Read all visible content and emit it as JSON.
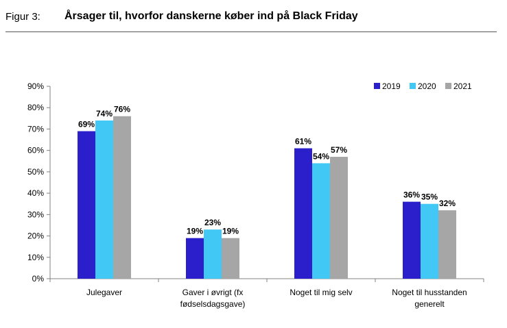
{
  "header": {
    "figure_label": "Figur 3:",
    "title": "Årsager til, hvorfor danskerne køber ind på Black Friday"
  },
  "chart_data": {
    "type": "bar",
    "title": "Årsager til, hvorfor danskerne køber ind på Black Friday",
    "categories": [
      [
        "Julegaver"
      ],
      [
        "Gaver i øvrigt (fx",
        "fødselsdagsgave)"
      ],
      [
        "Noget til mig selv"
      ],
      [
        "Noget til husstanden",
        "generelt"
      ]
    ],
    "series": [
      {
        "name": "2019",
        "color": "#2b1fcc",
        "values": [
          69,
          19,
          61,
          36
        ],
        "labels": [
          "69%",
          "19%",
          "61%",
          "36%"
        ]
      },
      {
        "name": "2020",
        "color": "#42c8f4",
        "values": [
          74,
          23,
          54,
          35
        ],
        "labels": [
          "74%",
          "23%",
          "54%",
          "35%"
        ]
      },
      {
        "name": "2021",
        "color": "#a6a6a6",
        "values": [
          76,
          19,
          57,
          32
        ],
        "labels": [
          "76%",
          "19%",
          "57%",
          "32%"
        ]
      }
    ],
    "yticks": [
      "0%",
      "10%",
      "20%",
      "30%",
      "40%",
      "50%",
      "60%",
      "70%",
      "80%",
      "90%"
    ],
    "ylim": [
      0,
      90
    ],
    "grid": false,
    "legend_position": "top-right"
  }
}
